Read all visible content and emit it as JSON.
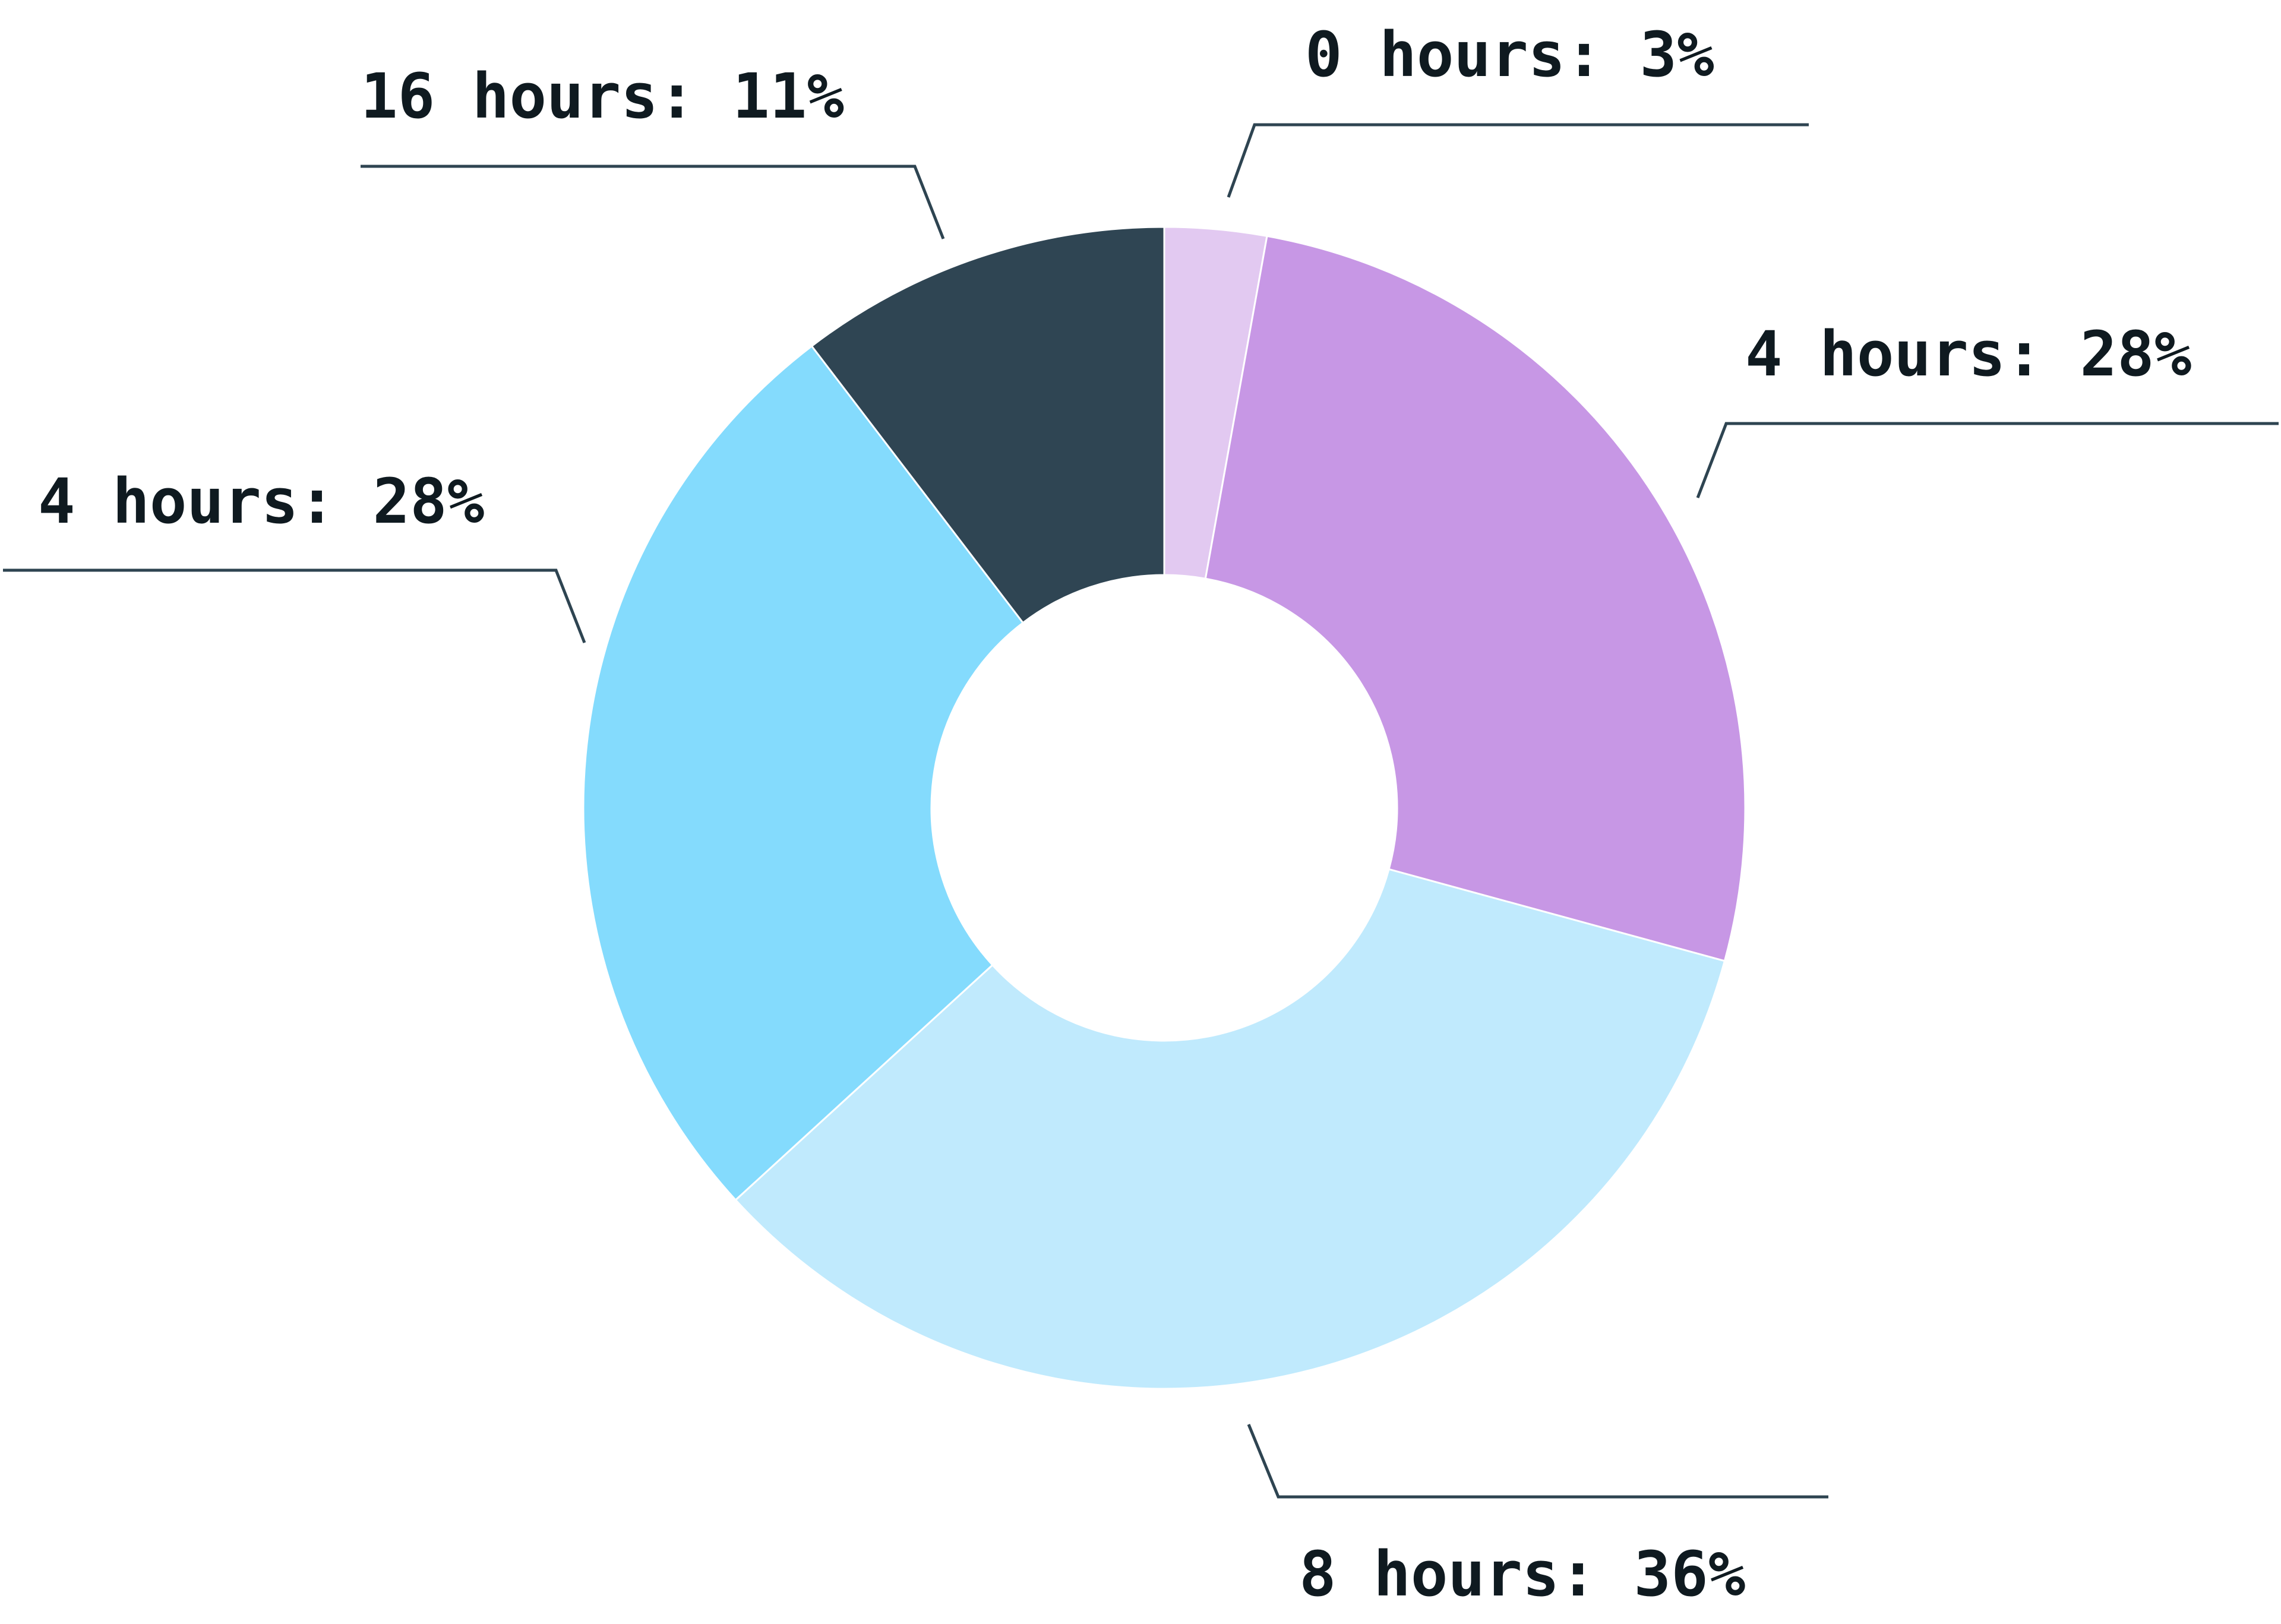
{
  "chart_data": {
    "type": "pie",
    "donut": true,
    "legend": "none",
    "slices": [
      {
        "category": "0 hours",
        "value": 3,
        "label": "0 hours: 3%",
        "color": "#e2c9f1"
      },
      {
        "category": "4 hours",
        "value": 28,
        "label": "4 hours: 28%",
        "color": "#c797e5"
      },
      {
        "category": "8 hours",
        "value": 36,
        "label": "8 hours: 36%",
        "color": "#c0eafd"
      },
      {
        "category": "4 hours",
        "value": 28,
        "label": "4 hours: 28%",
        "color": "#84dbfd"
      },
      {
        "category": "16 hours",
        "value": 11,
        "label": "16 hours: 11%",
        "color": "#2f4553"
      }
    ]
  }
}
